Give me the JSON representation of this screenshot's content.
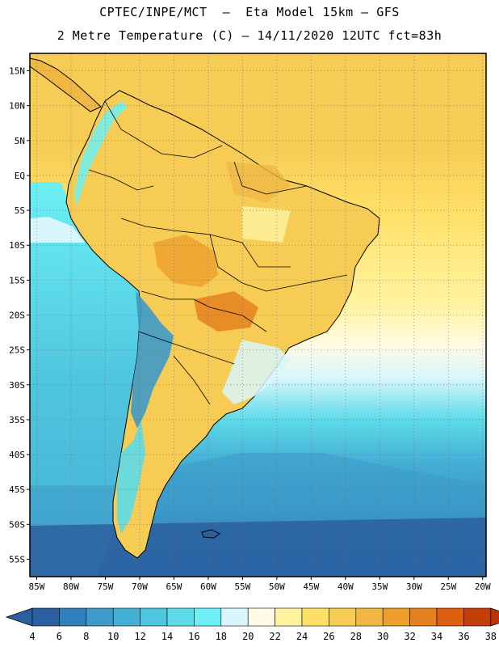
{
  "header": {
    "line1": "CPTEC/INPE/MCT  –  Eta Model 15km – GFS",
    "line2": "2 Metre Temperature (C) – 14/11/2020 12UTC fct=83h"
  },
  "map": {
    "lat_labels": [
      "15N",
      "10N",
      "5N",
      "EQ",
      "5S",
      "10S",
      "15S",
      "20S",
      "25S",
      "30S",
      "35S",
      "40S",
      "45S",
      "50S",
      "55S"
    ],
    "lon_labels": [
      "85W",
      "80W",
      "75W",
      "70W",
      "65W",
      "60W",
      "55W",
      "50W",
      "45W",
      "40W",
      "35W",
      "30W",
      "25W",
      "20W"
    ],
    "lat_range": [
      17.5,
      -57.5
    ],
    "lon_range": [
      -86,
      -19.5
    ],
    "grid": true
  },
  "colorbar": {
    "labels": [
      "4",
      "6",
      "8",
      "10",
      "12",
      "14",
      "16",
      "18",
      "20",
      "22",
      "24",
      "26",
      "28",
      "30",
      "32",
      "34",
      "36",
      "38"
    ],
    "colors": [
      "#2a5fa0",
      "#3280bb",
      "#3d9ac9",
      "#45b0d6",
      "#4fc6df",
      "#5ddbe8",
      "#6cf0f5",
      "#d8f6fb",
      "#fffbe6",
      "#fff3a0",
      "#ffe066",
      "#f6cc55",
      "#f0b843",
      "#ec9f2a",
      "#e58020",
      "#dd5f10",
      "#c43f07"
    ],
    "low_arrow_color": "#2a5fa0",
    "high_arrow_color": "#b8350a"
  }
}
